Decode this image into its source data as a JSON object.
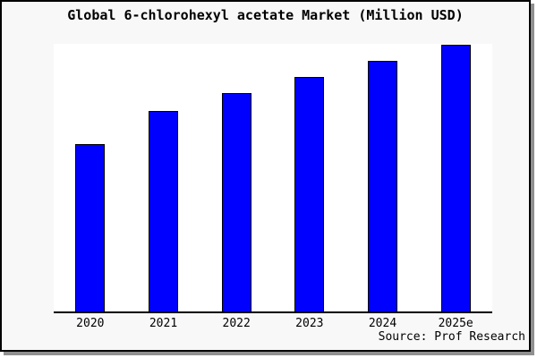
{
  "chart_data": {
    "type": "bar",
    "title": "Global 6-chlorohexyl acetate Market (Million USD)",
    "categories": [
      "2020",
      "2021",
      "2022",
      "2023",
      "2024",
      "2025e"
    ],
    "values": [
      62.9,
      75.3,
      81.9,
      87.9,
      94.0,
      100.0
    ],
    "values_note": "y-axis has no ticks, labels or gridlines; values estimated as percent of tallest bar (2025e = 100)",
    "xlabel": "",
    "ylabel": "",
    "ylim": [
      0,
      100
    ],
    "grid": false,
    "legend": false,
    "colors": {
      "bar_fill": "#0000ff",
      "bar_border": "#000000",
      "plot_background": "#ffffff",
      "figure_background": "#f8f8f8",
      "axis_line": "#000000",
      "frame_border": "#000000",
      "shadow": "#909090",
      "text": "#000000"
    }
  },
  "source_note": "Source: Prof Research"
}
